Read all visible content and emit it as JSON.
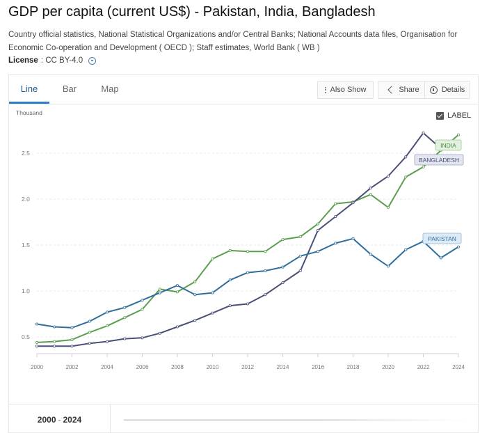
{
  "page": {
    "title": "GDP per capita (current US$) - Pakistan, India, Bangladesh",
    "source": "Country official statistics, National Statistical Organizations and/or Central Banks; National Accounts data files, Organisation for Economic Co-operation and Development ( OECD ); Staff estimates, World Bank ( WB )",
    "license_label": "License",
    "license_value": ": CC BY-4.0"
  },
  "tabs": [
    {
      "label": "Line",
      "active": true
    },
    {
      "label": "Bar",
      "active": false
    },
    {
      "label": "Map",
      "active": false
    }
  ],
  "toolbar": {
    "also_show": "Also Show",
    "share": "Share",
    "details": "Details"
  },
  "label_toggle": {
    "label": "LABEL",
    "checked": true
  },
  "range": {
    "start": "2000",
    "sep": "-",
    "end": "2024"
  },
  "colors": {
    "india": "#5a9e4e",
    "bangladesh": "#4a4f7a",
    "pakistan": "#2f6e9c"
  },
  "chart_data": {
    "type": "line",
    "unit_label": "Thousand",
    "ylim": [
      0.25,
      2.95
    ],
    "yticks": [
      0.5,
      1.0,
      1.5,
      2.0,
      2.5
    ],
    "ytick_labels": [
      "0.5",
      "1.0",
      "1.5",
      "2.0",
      "2.5"
    ],
    "xlim": [
      2000,
      2024
    ],
    "xticks": [
      2000,
      2002,
      2004,
      2006,
      2008,
      2010,
      2012,
      2014,
      2016,
      2018,
      2020,
      2022,
      2024
    ],
    "xtick_labels": [
      "2000",
      "2002",
      "2004",
      "2006",
      "2008",
      "2010",
      "2012",
      "2014",
      "2016",
      "2018",
      "2020",
      "2022",
      "2024"
    ],
    "x": [
      2000,
      2001,
      2002,
      2003,
      2004,
      2005,
      2006,
      2007,
      2008,
      2009,
      2010,
      2011,
      2012,
      2013,
      2014,
      2015,
      2016,
      2017,
      2018,
      2019,
      2020,
      2021,
      2022,
      2023,
      2024
    ],
    "series": [
      {
        "name": "India",
        "label": "INDIA",
        "color": "#5a9e4e",
        "values": [
          0.44,
          0.45,
          0.47,
          0.55,
          0.62,
          0.71,
          0.8,
          1.02,
          0.99,
          1.1,
          1.35,
          1.44,
          1.43,
          1.43,
          1.56,
          1.59,
          1.73,
          1.95,
          1.97,
          2.05,
          1.91,
          2.24,
          2.35,
          2.53,
          2.7
        ]
      },
      {
        "name": "Bangladesh",
        "label": "BANGLADESH",
        "color": "#4a4f7a",
        "values": [
          0.4,
          0.4,
          0.4,
          0.43,
          0.45,
          0.48,
          0.49,
          0.54,
          0.61,
          0.68,
          0.76,
          0.84,
          0.86,
          0.96,
          1.09,
          1.22,
          1.66,
          1.81,
          1.96,
          2.12,
          2.25,
          2.46,
          2.72,
          2.55,
          2.55
        ]
      },
      {
        "name": "Pakistan",
        "label": "PAKISTAN",
        "color": "#2f6e9c",
        "values": [
          0.64,
          0.61,
          0.6,
          0.67,
          0.77,
          0.82,
          0.9,
          0.98,
          1.06,
          0.96,
          0.98,
          1.12,
          1.2,
          1.22,
          1.26,
          1.38,
          1.43,
          1.52,
          1.57,
          1.4,
          1.27,
          1.45,
          1.54,
          1.36,
          1.48
        ]
      }
    ]
  }
}
